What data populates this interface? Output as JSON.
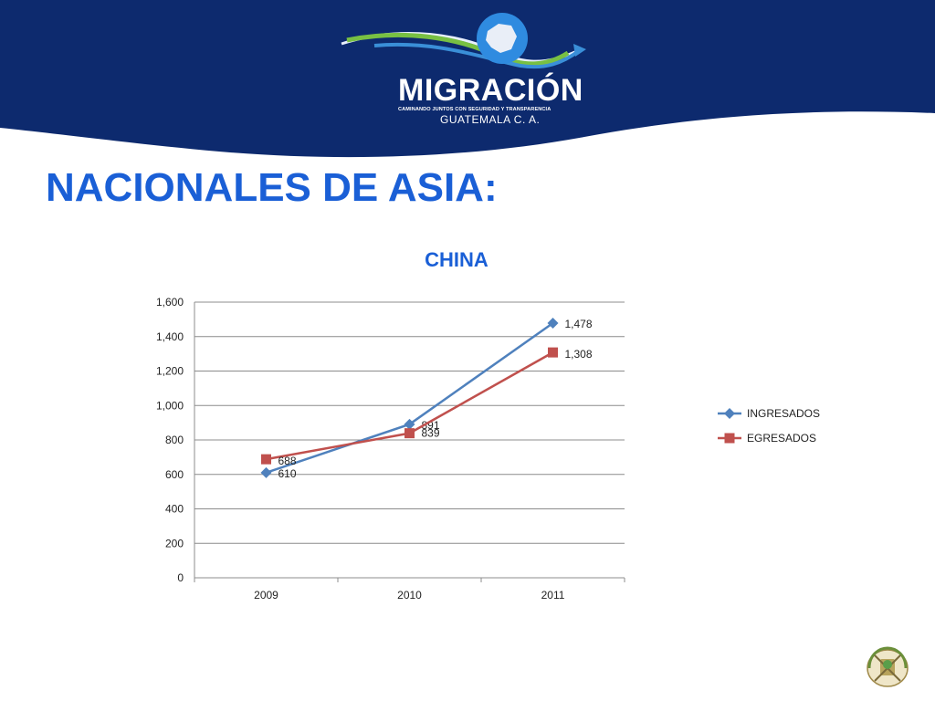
{
  "header": {
    "logo_name": "MIGRACIÓN",
    "logo_tagline": "CAMINANDO JUNTOS CON SEGURIDAD Y TRANSPARENCIA",
    "logo_country": "GUATEMALA C. A.",
    "colors": {
      "band": "#0d2a6e",
      "accent_blue": "#1a5fd6"
    }
  },
  "slide": {
    "title": "NACIONALES DE ASIA:"
  },
  "chart_data": {
    "type": "line",
    "title": "CHINA",
    "categories": [
      "2009",
      "2010",
      "2011"
    ],
    "series": [
      {
        "name": "INGRESADOS",
        "values": [
          610,
          891,
          1478
        ],
        "labels": [
          "610",
          "891",
          "1,478"
        ],
        "color": "#4f81bd",
        "marker": "diamond"
      },
      {
        "name": "EGRESADOS",
        "values": [
          688,
          839,
          1308
        ],
        "labels": [
          "688",
          "839",
          "1,308"
        ],
        "color": "#c0504d",
        "marker": "square"
      }
    ],
    "ylim": [
      0,
      1600
    ],
    "yticks": [
      "0",
      "200",
      "400",
      "600",
      "800",
      "1,000",
      "1,200",
      "1,400",
      "1,600"
    ],
    "grid": true,
    "legend": "right"
  },
  "footer": {
    "seal_icon": "coat-of-arms-icon"
  }
}
